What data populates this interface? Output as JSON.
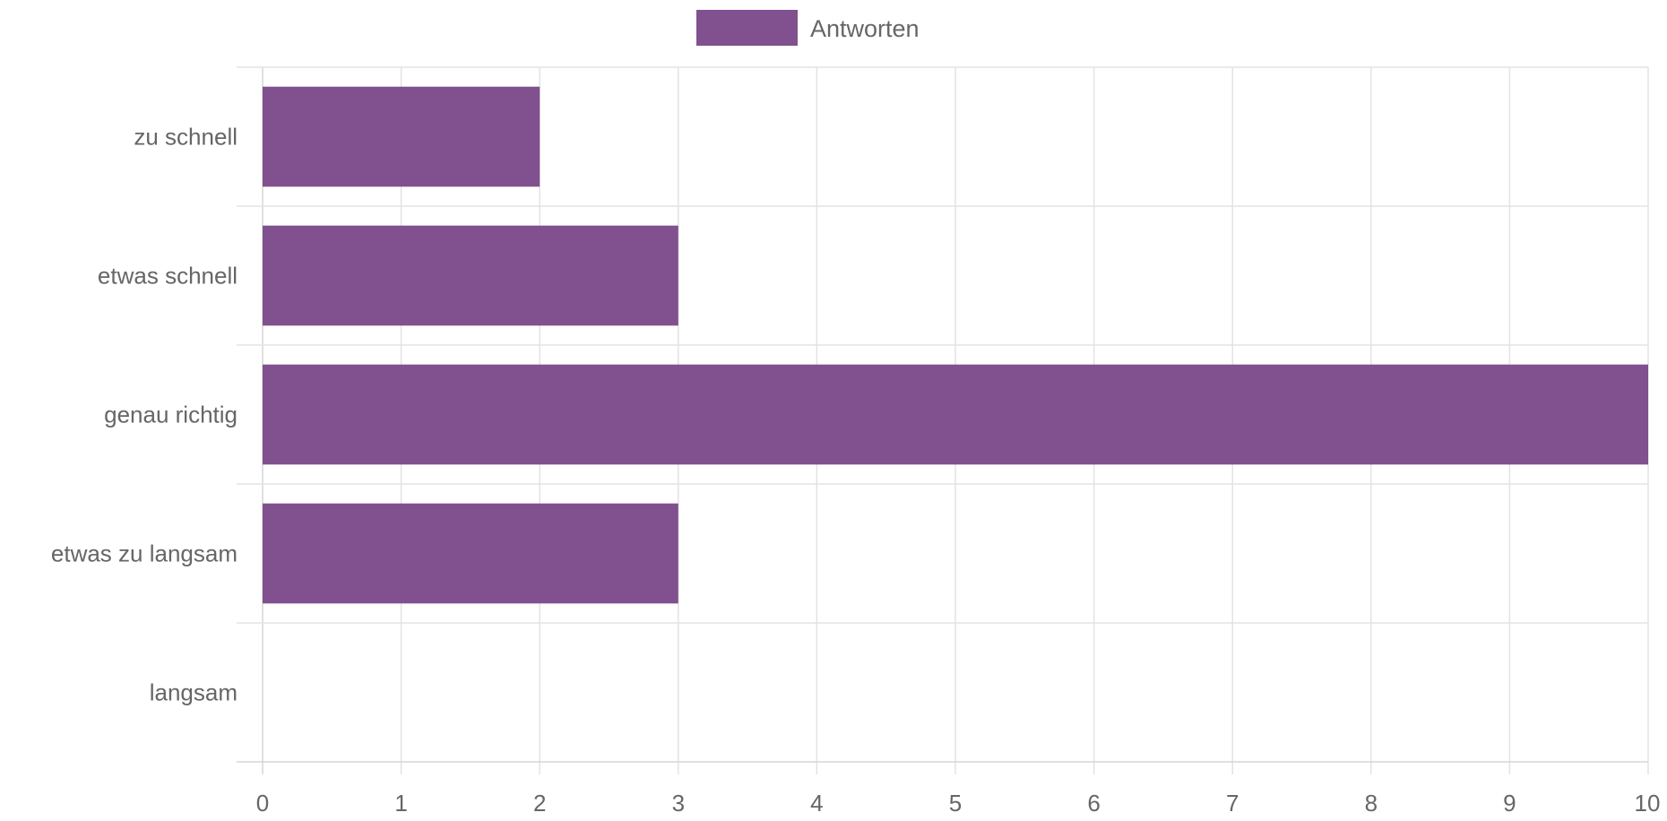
{
  "chart_data": {
    "type": "bar",
    "orientation": "horizontal",
    "categories": [
      "zu schnell",
      "etwas schnell",
      "genau richtig",
      "etwas zu langsam",
      "langsam"
    ],
    "series": [
      {
        "name": "Antworten",
        "values": [
          2,
          3,
          10,
          3,
          0
        ],
        "color": "#81508f"
      }
    ],
    "xlim": [
      0,
      10
    ],
    "x_ticks": [
      "0",
      "1",
      "2",
      "3",
      "4",
      "5",
      "6",
      "7",
      "8",
      "9",
      "10"
    ],
    "grid": true,
    "legend_position": "top-center"
  }
}
